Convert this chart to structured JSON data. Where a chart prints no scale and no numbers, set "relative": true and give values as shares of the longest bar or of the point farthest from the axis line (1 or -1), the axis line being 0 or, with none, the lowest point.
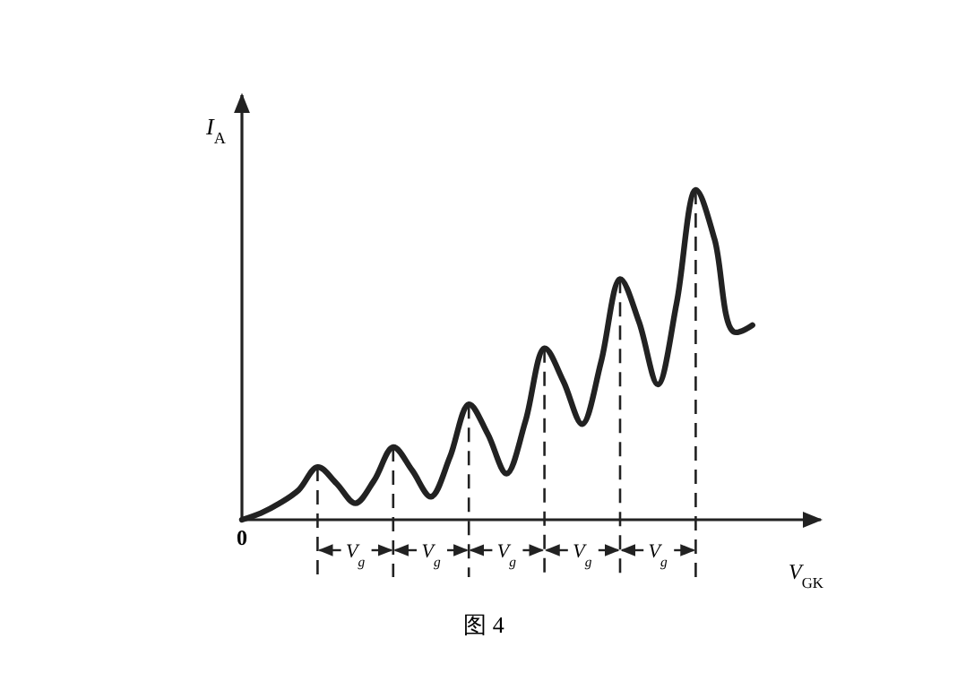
{
  "chart_data": {
    "type": "line",
    "title": "图 4",
    "xlabel": "V$_{GK}$",
    "ylabel": "I$_{A}$",
    "relative": true,
    "categories": [
      null,
      null,
      null,
      null,
      null,
      null,
      null,
      null,
      null,
      null,
      null,
      null,
      null,
      null,
      null,
      null,
      null,
      null,
      null,
      null,
      null,
      null,
      null,
      null,
      null,
      null,
      null,
      null
    ],
    "series": [
      {
        "color": "#222222",
        "values": [
          0,
          0.02,
          0.05,
          0.09,
          0.16,
          0.11,
          0.05,
          0.12,
          0.22,
          0.15,
          0.07,
          0.19,
          0.35,
          0.26,
          0.14,
          0.3,
          0.52,
          0.42,
          0.29,
          0.48,
          0.73,
          0.6,
          0.41,
          0.66,
          1,
          0.85,
          0.57,
          0.59
        ]
      }
    ],
    "annotations": [
      {
        "text": "0",
        "y": 0
      },
      "V$_{g}$",
      "V$_{g}$",
      "V$_{g}$",
      "V$_{g}$",
      "V$_{g}$"
    ],
    "marker": "none",
    "line_style": "solid"
  }
}
